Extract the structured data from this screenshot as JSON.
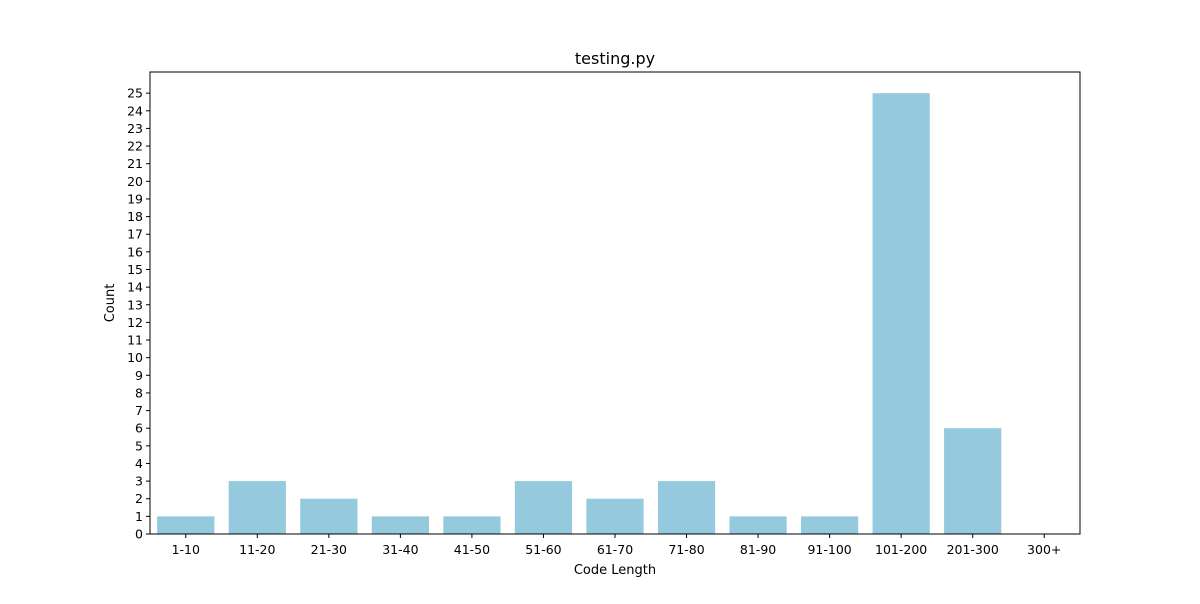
{
  "chart_data": {
    "type": "bar",
    "title": "testing.py",
    "xlabel": "Code Length",
    "ylabel": "Count",
    "categories": [
      "1-10",
      "11-20",
      "21-30",
      "31-40",
      "41-50",
      "51-60",
      "61-70",
      "71-80",
      "81-90",
      "91-100",
      "101-200",
      "201-300",
      "300+"
    ],
    "values": [
      1,
      3,
      2,
      1,
      1,
      3,
      2,
      3,
      1,
      1,
      25,
      6,
      0
    ],
    "ylim": [
      0,
      26.2
    ],
    "yticks": [
      0,
      1,
      2,
      3,
      4,
      5,
      6,
      7,
      8,
      9,
      10,
      11,
      12,
      13,
      14,
      15,
      16,
      17,
      18,
      19,
      20,
      21,
      22,
      23,
      24,
      25
    ],
    "grid": false,
    "bar_color": "#95c9de",
    "axis_color": "#000000"
  }
}
